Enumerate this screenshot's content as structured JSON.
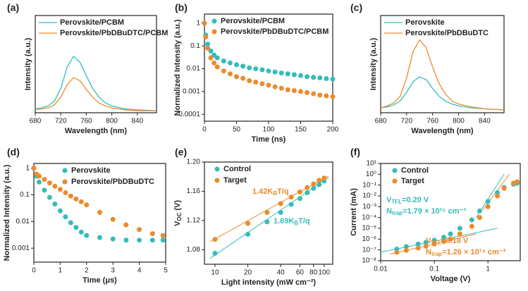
{
  "chart_data": [
    {
      "type": "line",
      "panel": "(a)",
      "xlabel": "Wavelength (nm)",
      "ylabel": "Intensity (a.u.)",
      "x": [
        680,
        690,
        700,
        710,
        720,
        730,
        740,
        750,
        760,
        770,
        780,
        790,
        800,
        820,
        840,
        870
      ],
      "xlim": [
        680,
        870
      ],
      "xticks": [
        680,
        720,
        760,
        800,
        840
      ],
      "ylim": [
        0,
        1
      ],
      "series": [
        {
          "name": "Perovskite/PCBM",
          "color": "#33bcbc",
          "values": [
            0.04,
            0.05,
            0.07,
            0.12,
            0.25,
            0.47,
            0.58,
            0.52,
            0.38,
            0.25,
            0.16,
            0.1,
            0.07,
            0.04,
            0.03,
            0.02
          ]
        },
        {
          "name": "Perovskite/PbDBuDTC/PCBM",
          "color": "#ec8a2c",
          "values": [
            0.03,
            0.04,
            0.05,
            0.08,
            0.16,
            0.29,
            0.36,
            0.33,
            0.24,
            0.16,
            0.1,
            0.07,
            0.05,
            0.03,
            0.02,
            0.02
          ]
        }
      ]
    },
    {
      "type": "scatter",
      "panel": "(b)",
      "xlabel": "Time (ns)",
      "ylabel": "Normalized Intensity (a.u.)",
      "ylog": true,
      "x": [
        0,
        2,
        5,
        10,
        15,
        20,
        30,
        40,
        50,
        60,
        70,
        80,
        90,
        100,
        110,
        120,
        130,
        140,
        150,
        160,
        170,
        180,
        190,
        200
      ],
      "xlim": [
        0,
        200
      ],
      "xticks": [
        0,
        50,
        100,
        150,
        200
      ],
      "ylim": [
        5e-05,
        2.5
      ],
      "yticks": [
        0.0001,
        0.001,
        0.01,
        0.1,
        1
      ],
      "series": [
        {
          "name": "Perovskite/PCBM",
          "color": "#33bcbc",
          "values": [
            1,
            0.3,
            0.12,
            0.06,
            0.04,
            0.03,
            0.022,
            0.018,
            0.015,
            0.013,
            0.011,
            0.01,
            0.009,
            0.008,
            0.0072,
            0.0065,
            0.006,
            0.0055,
            0.005,
            0.0045,
            0.0042,
            0.004,
            0.0037,
            0.0035
          ]
        },
        {
          "name": "Perovskite/PbDBuDTC/PCBM",
          "color": "#ec8a2c",
          "values": [
            1,
            0.25,
            0.08,
            0.03,
            0.018,
            0.012,
            0.008,
            0.006,
            0.0045,
            0.0038,
            0.003,
            0.0026,
            0.0022,
            0.0019,
            0.0016,
            0.0014,
            0.0012,
            0.0011,
            0.001,
            0.0009,
            0.0008,
            0.0007,
            0.00065,
            0.0006
          ]
        }
      ]
    },
    {
      "type": "line",
      "panel": "(c)",
      "xlabel": "Wavelength (nm)",
      "ylabel": "Intensity (a.u.)",
      "x": [
        680,
        690,
        700,
        710,
        720,
        730,
        740,
        750,
        760,
        770,
        780,
        790,
        800,
        820,
        840,
        870
      ],
      "xlim": [
        680,
        870
      ],
      "xticks": [
        680,
        720,
        760,
        800,
        840
      ],
      "ylim": [
        0,
        1
      ],
      "series": [
        {
          "name": "Perovskite",
          "color": "#33bcbc",
          "values": [
            0.05,
            0.06,
            0.08,
            0.12,
            0.21,
            0.32,
            0.37,
            0.34,
            0.25,
            0.17,
            0.12,
            0.09,
            0.07,
            0.05,
            0.04,
            0.03
          ]
        },
        {
          "name": "Perovskite/PbDBuDTC",
          "color": "#ec8a2c",
          "values": [
            0.05,
            0.07,
            0.1,
            0.17,
            0.36,
            0.63,
            0.75,
            0.67,
            0.47,
            0.3,
            0.19,
            0.12,
            0.09,
            0.06,
            0.04,
            0.03
          ]
        }
      ]
    },
    {
      "type": "scatter",
      "panel": "(d)",
      "xlabel": "Time (μs)",
      "ylabel": "Normalized Intensity (a.u.)",
      "ylog": true,
      "x": [
        0,
        0.1,
        0.2,
        0.4,
        0.6,
        0.8,
        1.0,
        1.2,
        1.4,
        1.6,
        1.8,
        2.0,
        2.5,
        3,
        3.5,
        4,
        4.5,
        4.9
      ],
      "xlim": [
        0,
        5
      ],
      "xticks": [
        0,
        1,
        2,
        3,
        4,
        5
      ],
      "ylim": [
        0.0003,
        1.5
      ],
      "yticks": [
        0.001,
        0.01,
        0.1,
        1
      ],
      "series": [
        {
          "name": "Perovskite",
          "color": "#33bcbc",
          "values": [
            1,
            0.5,
            0.3,
            0.15,
            0.08,
            0.045,
            0.025,
            0.015,
            0.009,
            0.006,
            0.004,
            0.003,
            0.0025,
            0.0022,
            0.002,
            0.002,
            0.002,
            0.002
          ]
        },
        {
          "name": "Perovskite/PbDBuDTC",
          "color": "#ec8a2c",
          "values": [
            1,
            0.6,
            0.5,
            0.38,
            0.28,
            0.21,
            0.16,
            0.12,
            0.09,
            0.07,
            0.055,
            0.042,
            0.022,
            0.012,
            0.0075,
            0.005,
            0.0035,
            0.003
          ]
        }
      ]
    },
    {
      "type": "scatter",
      "panel": "(e)",
      "xlabel": "Light intensity (mW cm⁻²)",
      "ylabel": [
        "V",
        "OC",
        " (V)"
      ],
      "xlog": true,
      "x": [
        10,
        20,
        30,
        40,
        50,
        60,
        70,
        80,
        90,
        100
      ],
      "xlim": [
        8,
        120
      ],
      "xticks": [
        10,
        20,
        40,
        60,
        80,
        100
      ],
      "ylim": [
        1.06,
        1.2
      ],
      "yticks": [
        1.08,
        1.12,
        1.16,
        {
          "value": 1.2,
          "label": "1.20"
        }
      ],
      "series": [
        {
          "name": "Control",
          "color": "#33bcbc",
          "values": [
            1.075,
            1.101,
            1.118,
            1.131,
            1.142,
            1.15,
            1.158,
            1.164,
            1.169,
            1.174
          ]
        },
        {
          "name": "Target",
          "color": "#ec8a2c",
          "values": [
            1.094,
            1.116,
            1.131,
            1.143,
            1.152,
            1.159,
            1.165,
            1.17,
            1.175,
            1.178
          ]
        }
      ],
      "fits": [
        {
          "color": "#33bcbc",
          "x": [
            9,
            110
          ],
          "values": [
            1.068,
            1.179
          ]
        },
        {
          "color": "#ec8a2c",
          "x": [
            9,
            110
          ],
          "values": [
            1.091,
            1.181
          ]
        }
      ],
      "annotations": [
        {
          "text": [
            "1.42K",
            "B",
            "T/q"
          ],
          "color": "#ec8a2c"
        },
        {
          "text": [
            "1.69K",
            "B",
            "T/q"
          ],
          "color": "#33bcbc"
        }
      ]
    },
    {
      "type": "scatter",
      "panel": "(f)",
      "xlabel": "Voltage (V)",
      "ylabel": "Current (mA)",
      "xlog": true,
      "ylog": true,
      "x": [
        0.02,
        0.03,
        0.05,
        0.07,
        0.1,
        0.15,
        0.2,
        0.3,
        0.5,
        0.7,
        1,
        1.5,
        2,
        3,
        3.5
      ],
      "xlim": [
        0.01,
        4
      ],
      "xticks": [
        0.01,
        0.1,
        1
      ],
      "ylim": [
        1e-08,
        10
      ],
      "yticks": [
        {
          "value": 1e-08,
          "label": "10⁻⁸"
        },
        {
          "value": 1e-07,
          "label": "10⁻⁷"
        },
        {
          "value": 1e-06,
          "label": "10⁻⁶"
        },
        {
          "value": 1e-05,
          "label": "10⁻⁵"
        },
        {
          "value": 0.0001,
          "label": "10⁻⁴"
        },
        {
          "value": 0.001,
          "label": "10⁻³"
        },
        {
          "value": 0.01,
          "label": "10⁻²"
        },
        {
          "value": 0.1,
          "label": "10⁻¹"
        },
        {
          "value": 1,
          "label": "10⁰"
        },
        {
          "value": 10,
          "label": "10¹"
        }
      ],
      "series": [
        {
          "name": "Control",
          "color": "#33bcbc",
          "values": [
            1.2e-07,
            2e-07,
            3.5e-07,
            5e-07,
            8e-07,
            1.5e-06,
            3e-06,
            1e-05,
            6e-05,
            0.0004,
            0.003,
            0.02,
            0.06,
            0.12,
            0.15
          ]
        },
        {
          "name": "Target",
          "color": "#ec8a2c",
          "values": [
            6e-08,
            9e-08,
            1.5e-07,
            2.2e-07,
            3.5e-07,
            6e-07,
            1e-06,
            3e-06,
            1.5e-05,
            0.0001,
            0.001,
            0.01,
            0.05,
            0.15,
            0.2
          ]
        }
      ],
      "fits": [
        {
          "color": "#33bcbc",
          "x": [
            0.01,
            1.5
          ],
          "values": [
            6e-08,
            1e-05
          ]
        },
        {
          "color": "#33bcbc",
          "x": [
            0.6,
            2
          ],
          "values": [
            0.0001,
            1
          ]
        },
        {
          "color": "#ec8a2c",
          "x": [
            0.015,
            0.6
          ],
          "values": [
            4e-08,
            3e-06
          ]
        },
        {
          "color": "#ec8a2c",
          "x": [
            0.8,
            2.5
          ],
          "values": [
            0.0005,
            1
          ]
        }
      ],
      "annotations": [
        {
          "text": [
            "V",
            "TFL",
            "=0.20 V"
          ],
          "color": "#33bcbc"
        },
        {
          "text": [
            "N",
            "trap",
            "=1.79 × 10¹⁵ cm⁻³"
          ],
          "color": "#33bcbc"
        },
        {
          "text": [
            "V",
            "TFL",
            "=0.18 V"
          ],
          "color": "#ec8a2c"
        },
        {
          "text": [
            "N",
            "trap",
            "=1.26 × 10¹⁴ cm⁻³"
          ],
          "color": "#ec8a2c"
        }
      ]
    }
  ]
}
